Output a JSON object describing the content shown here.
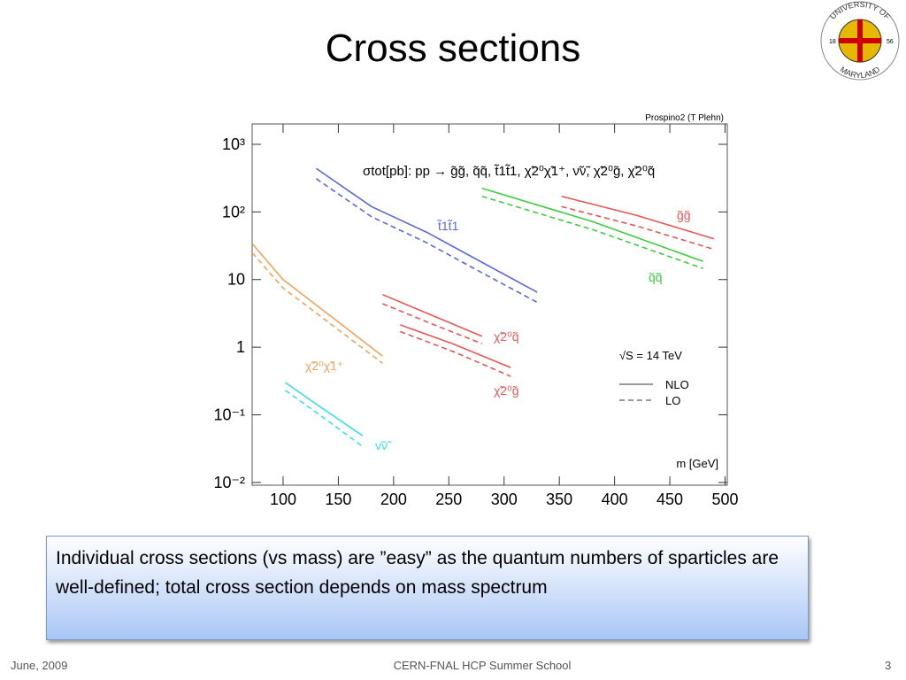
{
  "slide": {
    "title": "Cross sections",
    "body": "Individual cross sections (vs mass) are ”easy” as the quantum numbers of sparticles are well-defined; total cross section depends on mass spectrum",
    "footer_left": "June, 2009",
    "footer_center": "CERN-FNAL HCP Summer School",
    "page_number": "3"
  },
  "logo": {
    "top": "UNIVERSITY OF",
    "bottom": "MARYLAND",
    "left": "18",
    "right": "56"
  },
  "chart_data": {
    "type": "line",
    "title": "σtot[pb]:  pp → g̃g̃, q̃q̃, t̃1t̃1, χ̃2⁰χ̃1⁺, ν̃ν̃, χ̃2⁰g̃, χ̃2⁰q̃",
    "credit": "Prospino2 (T Plehn)",
    "x_label": "m [GeV]",
    "annotation": "√S = 14 TeV",
    "log_y": true,
    "grid": false,
    "xlim": [
      72,
      502
    ],
    "xticks": [
      100,
      150,
      200,
      250,
      300,
      350,
      400,
      450,
      500
    ],
    "ylim": [
      0.0091,
      2000
    ],
    "yticks": [
      {
        "value": 1000,
        "label": "10³"
      },
      {
        "value": 100,
        "label": "10²"
      },
      10,
      1,
      {
        "value": 0.1,
        "label": "10⁻¹"
      },
      {
        "value": 0.01,
        "label": "10⁻²"
      }
    ],
    "legend": {
      "corner": "lower-right",
      "solid": "NLO",
      "dashed": "LO"
    },
    "series": [
      {
        "name": "t̃1t̃1",
        "color": "#5a68e0",
        "x": [
          130,
          180,
          230,
          280,
          330
        ],
        "values": [
          440,
          120,
          50,
          18,
          6.5
        ],
        "lo_values": [
          310,
          85,
          35,
          12.6,
          4.6
        ]
      },
      {
        "name": "g̃g̃",
        "color": "#e85555",
        "x": [
          352,
          420,
          490
        ],
        "values": [
          170,
          89,
          40
        ],
        "lo_values": [
          120,
          62,
          28
        ]
      },
      {
        "name": "q̃q̃",
        "color": "#3ccc3c",
        "x": [
          280,
          380,
          480
        ],
        "values": [
          224,
          72,
          18.6
        ],
        "lo_values": [
          170,
          55,
          14.6
        ]
      },
      {
        "name": "χ̃2⁰q̃",
        "color": "#e85555",
        "x": [
          190,
          235,
          280
        ],
        "values": [
          6.0,
          2.95,
          1.45
        ],
        "lo_values": [
          4.4,
          2.2,
          1.13
        ]
      },
      {
        "name": "χ̃2⁰g̃",
        "color": "#e85555",
        "x": [
          206,
          255,
          306
        ],
        "values": [
          2.14,
          1.1,
          0.5
        ],
        "lo_values": [
          1.7,
          0.85,
          0.37
        ]
      },
      {
        "name": "χ̃2⁰χ̃1⁺",
        "color": "#f5a25a",
        "x": [
          72,
          100,
          130,
          190
        ],
        "values": [
          34,
          10,
          4.2,
          0.74
        ],
        "lo_values": [
          25,
          7.5,
          3.2,
          0.58
        ]
      },
      {
        "name": "ν̃ν̃",
        "color": "#3ae0f0",
        "x": [
          102,
          137,
          172
        ],
        "values": [
          0.3,
          0.12,
          0.049
        ],
        "lo_values": [
          0.23,
          0.09,
          0.034
        ]
      }
    ]
  }
}
